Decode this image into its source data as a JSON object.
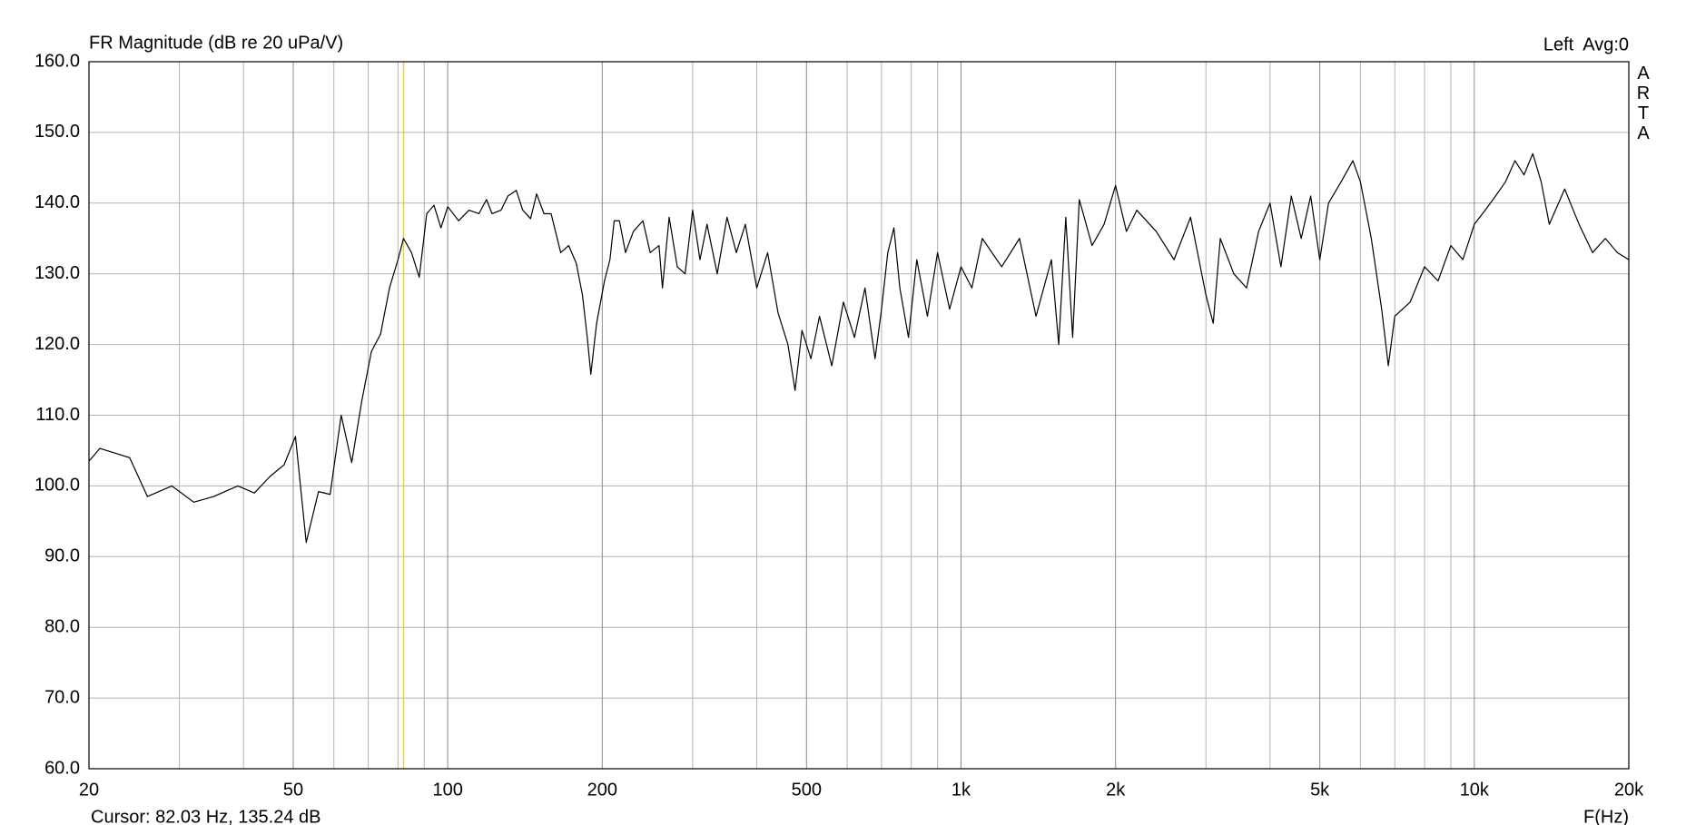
{
  "chart_data": {
    "type": "line",
    "title": "FR Magnitude (dB re 20 uPa/V)",
    "channel_label": "Left  Avg:0",
    "brand": "ARTA",
    "x_label": "F(Hz)",
    "cursor": {
      "x": 82.03,
      "label": "Cursor: 82.03 Hz, 135.24 dB",
      "color": "#e2d440"
    },
    "x_scale": "log",
    "grid": true,
    "xlim": [
      20,
      20000
    ],
    "ylim": [
      60,
      160
    ],
    "xticks": [
      20,
      50,
      100,
      200,
      500,
      {
        "value": 1000,
        "label": "1k"
      },
      {
        "value": 2000,
        "label": "2k"
      },
      {
        "value": 5000,
        "label": "5k"
      },
      {
        "value": 10000,
        "label": "10k"
      },
      {
        "value": 20000,
        "label": "20k"
      }
    ],
    "x_minor_grid": [
      30,
      40,
      60,
      70,
      80,
      90,
      300,
      400,
      600,
      700,
      800,
      900,
      3000,
      4000,
      6000,
      7000,
      8000,
      9000
    ],
    "yticks": [
      {
        "value": 60,
        "label": "60.0"
      },
      {
        "value": 70,
        "label": "70.0"
      },
      {
        "value": 80,
        "label": "80.0"
      },
      {
        "value": 90,
        "label": "90.0"
      },
      {
        "value": 100,
        "label": "100.0"
      },
      {
        "value": 110,
        "label": "110.0"
      },
      {
        "value": 120,
        "label": "120.0"
      },
      {
        "value": 130,
        "label": "130.0"
      },
      {
        "value": 140,
        "label": "140.0"
      },
      {
        "value": 150,
        "label": "150.0"
      },
      {
        "value": 160,
        "label": "160.0"
      }
    ],
    "x": [
      20,
      21,
      24,
      26,
      29,
      32,
      35,
      39,
      42,
      45,
      48,
      50.5,
      53,
      56,
      59,
      62,
      65,
      68,
      71,
      74,
      77,
      80,
      82,
      85,
      88,
      91,
      94,
      97,
      100,
      105,
      110,
      115,
      119,
      122,
      127,
      131,
      136,
      140,
      145,
      149,
      154,
      159,
      166,
      172,
      178,
      183,
      187,
      190,
      195,
      202,
      207,
      211,
      216,
      222,
      230,
      240,
      248,
      258,
      262,
      270,
      280,
      290,
      300,
      310,
      320,
      335,
      350,
      365,
      380,
      400,
      420,
      440,
      460,
      475,
      490,
      510,
      530,
      560,
      590,
      620,
      650,
      680,
      700,
      720,
      740,
      760,
      790,
      820,
      860,
      900,
      950,
      1000,
      1050,
      1100,
      1200,
      1300,
      1400,
      1500,
      1550,
      1600,
      1650,
      1700,
      1800,
      1900,
      2000,
      2100,
      2200,
      2400,
      2600,
      2800,
      3000,
      3100,
      3200,
      3400,
      3600,
      3800,
      4000,
      4200,
      4400,
      4600,
      4800,
      5000,
      5200,
      5500,
      5800,
      6000,
      6300,
      6600,
      6800,
      7000,
      7500,
      8000,
      8500,
      9000,
      9500,
      10000,
      10500,
      11000,
      11500,
      12000,
      12500,
      13000,
      13500,
      14000,
      15000,
      16000,
      17000,
      18000,
      19000,
      20000
    ],
    "series": [
      {
        "color": "#000000",
        "values": [
          103.5,
          105.3,
          104,
          98.5,
          100,
          97.7,
          98.5,
          100,
          99,
          101.3,
          103,
          107,
          92,
          99.2,
          98.8,
          110,
          103.3,
          112,
          119,
          121.5,
          128,
          132,
          135,
          133,
          129.5,
          138.5,
          139.7,
          136.5,
          139.5,
          137.5,
          139,
          138.5,
          140.5,
          138.5,
          139,
          141,
          141.8,
          139,
          137.8,
          141.3,
          138.5,
          138.5,
          133,
          134,
          131.5,
          127,
          121,
          115.8,
          123,
          129,
          132,
          137.5,
          137.5,
          133,
          136,
          137.5,
          133,
          134,
          128,
          138,
          131,
          130,
          139,
          132,
          137,
          130,
          138,
          133,
          137,
          128,
          133,
          124.5,
          120,
          113.5,
          122,
          118,
          124,
          117,
          126,
          121,
          128,
          118,
          125,
          133,
          136.5,
          128,
          121,
          132,
          124,
          133,
          125,
          131,
          128,
          135,
          131,
          135,
          124,
          132,
          120,
          138,
          121,
          140.5,
          134,
          137,
          142.5,
          136,
          139,
          136,
          132,
          138,
          127,
          123,
          135,
          130,
          128,
          136,
          140,
          131,
          141,
          135,
          141,
          132,
          140,
          143,
          146,
          143,
          135,
          125,
          117,
          124,
          126,
          131,
          129,
          134,
          132,
          137,
          139,
          141,
          143,
          146,
          144,
          147,
          143,
          137,
          142,
          137,
          133,
          135,
          133,
          132
        ]
      }
    ]
  }
}
